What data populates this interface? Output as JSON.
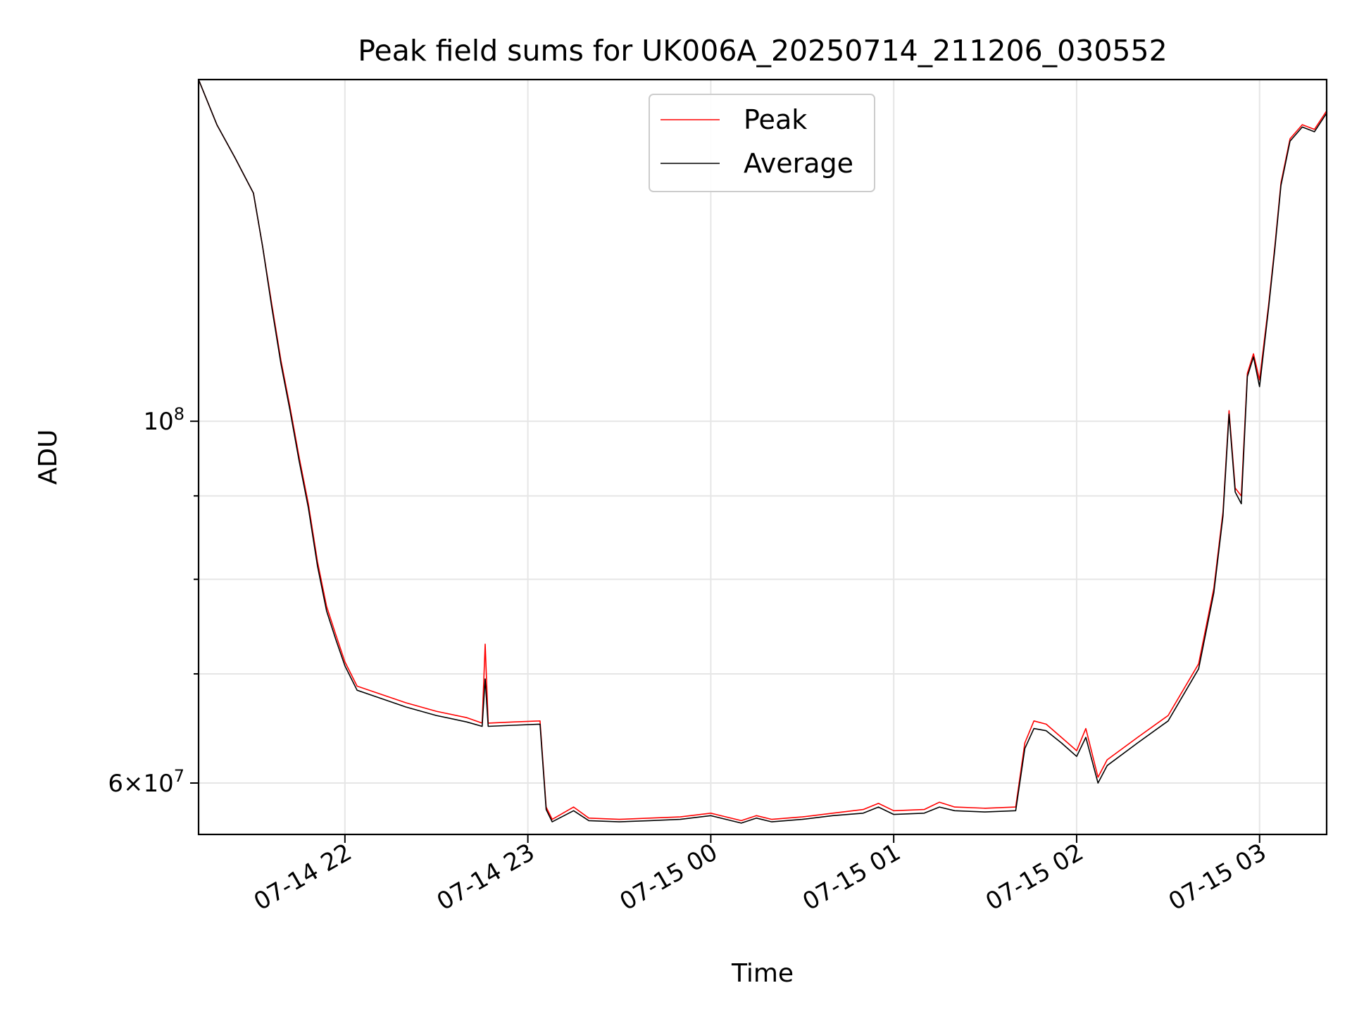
{
  "chart_data": {
    "type": "line",
    "title": "Peak field sums for UK006A_20250714_211206_030552",
    "xlabel": "Time",
    "ylabel": "ADU",
    "y_scale": "log",
    "grid": true,
    "legend_placement": "upper center",
    "xlim": [
      "2025-07-14 21:12",
      "2025-07-15 03:22"
    ],
    "ylim": [
      55800000,
      162000000
    ],
    "x_ticks": [
      {
        "t": "2025-07-14 22:00",
        "label": "07-14 22"
      },
      {
        "t": "2025-07-14 23:00",
        "label": "07-14 23"
      },
      {
        "t": "2025-07-15 00:00",
        "label": "07-15 00"
      },
      {
        "t": "2025-07-15 01:00",
        "label": "07-15 01"
      },
      {
        "t": "2025-07-15 02:00",
        "label": "07-15 02"
      },
      {
        "t": "2025-07-15 03:00",
        "label": "07-15 03"
      }
    ],
    "y_major_ticks": [
      {
        "value": 60000000,
        "base": "6",
        "exp": "7"
      },
      {
        "value": 100000000,
        "base": "",
        "exp": "8"
      }
    ],
    "y_minor_ticks": [
      70000000,
      80000000,
      90000000
    ],
    "series": [
      {
        "name": "Peak",
        "color": "#ff0000",
        "points": [
          [
            "2025-07-14 21:12",
            162000000
          ],
          [
            "2025-07-14 21:18",
            152000000
          ],
          [
            "2025-07-14 21:24",
            145000000
          ],
          [
            "2025-07-14 21:30",
            138000000
          ],
          [
            "2025-07-14 21:33",
            128000000
          ],
          [
            "2025-07-14 21:36",
            118000000
          ],
          [
            "2025-07-14 21:39",
            109000000
          ],
          [
            "2025-07-14 21:42",
            102000000
          ],
          [
            "2025-07-14 21:45",
            95000000
          ],
          [
            "2025-07-14 21:48",
            89000000
          ],
          [
            "2025-07-14 21:51",
            82000000
          ],
          [
            "2025-07-14 21:54",
            77000000
          ],
          [
            "2025-07-14 21:57",
            74000000
          ],
          [
            "2025-07-14 22:00",
            71200000
          ],
          [
            "2025-07-14 22:04",
            68800000
          ],
          [
            "2025-07-14 22:10",
            68200000
          ],
          [
            "2025-07-14 22:20",
            67200000
          ],
          [
            "2025-07-14 22:30",
            66400000
          ],
          [
            "2025-07-14 22:40",
            65800000
          ],
          [
            "2025-07-14 22:45",
            65300000
          ],
          [
            "2025-07-14 22:46",
            73000000
          ],
          [
            "2025-07-14 22:47",
            65300000
          ],
          [
            "2025-07-14 22:55",
            65400000
          ],
          [
            "2025-07-14 23:04",
            65500000
          ],
          [
            "2025-07-14 23:06",
            58000000
          ],
          [
            "2025-07-14 23:08",
            57000000
          ],
          [
            "2025-07-14 23:15",
            58000000
          ],
          [
            "2025-07-14 23:20",
            57100000
          ],
          [
            "2025-07-14 23:30",
            57000000
          ],
          [
            "2025-07-14 23:40",
            57100000
          ],
          [
            "2025-07-14 23:50",
            57200000
          ],
          [
            "2025-07-15 00:00",
            57500000
          ],
          [
            "2025-07-15 00:10",
            56900000
          ],
          [
            "2025-07-15 00:15",
            57300000
          ],
          [
            "2025-07-15 00:20",
            57000000
          ],
          [
            "2025-07-15 00:30",
            57200000
          ],
          [
            "2025-07-15 00:40",
            57500000
          ],
          [
            "2025-07-15 00:50",
            57800000
          ],
          [
            "2025-07-15 00:55",
            58300000
          ],
          [
            "2025-07-15 01:00",
            57700000
          ],
          [
            "2025-07-15 01:10",
            57800000
          ],
          [
            "2025-07-15 01:15",
            58400000
          ],
          [
            "2025-07-15 01:20",
            58000000
          ],
          [
            "2025-07-15 01:30",
            57900000
          ],
          [
            "2025-07-15 01:40",
            58000000
          ],
          [
            "2025-07-15 01:43",
            63500000
          ],
          [
            "2025-07-15 01:46",
            65500000
          ],
          [
            "2025-07-15 01:50",
            65200000
          ],
          [
            "2025-07-15 01:55",
            64000000
          ],
          [
            "2025-07-15 02:00",
            62800000
          ],
          [
            "2025-07-15 02:03",
            64800000
          ],
          [
            "2025-07-15 02:07",
            60500000
          ],
          [
            "2025-07-15 02:10",
            62000000
          ],
          [
            "2025-07-15 02:20",
            64000000
          ],
          [
            "2025-07-15 02:30",
            66000000
          ],
          [
            "2025-07-15 02:40",
            71000000
          ],
          [
            "2025-07-15 02:45",
            79000000
          ],
          [
            "2025-07-15 02:48",
            88000000
          ],
          [
            "2025-07-15 02:50",
            101500000
          ],
          [
            "2025-07-15 02:52",
            91000000
          ],
          [
            "2025-07-15 02:54",
            90000000
          ],
          [
            "2025-07-15 02:56",
            107000000
          ],
          [
            "2025-07-15 02:58",
            110000000
          ],
          [
            "2025-07-15 03:00",
            106000000
          ],
          [
            "2025-07-15 03:03",
            118000000
          ],
          [
            "2025-07-15 03:05",
            128000000
          ],
          [
            "2025-07-15 03:07",
            140000000
          ],
          [
            "2025-07-15 03:10",
            149000000
          ],
          [
            "2025-07-15 03:14",
            152000000
          ],
          [
            "2025-07-15 03:18",
            151000000
          ],
          [
            "2025-07-15 03:22",
            155000000
          ]
        ]
      },
      {
        "name": "Average",
        "color": "#000000",
        "points": [
          [
            "2025-07-14 21:12",
            162000000
          ],
          [
            "2025-07-14 21:18",
            152000000
          ],
          [
            "2025-07-14 21:24",
            145000000
          ],
          [
            "2025-07-14 21:30",
            138000000
          ],
          [
            "2025-07-14 21:33",
            128000000
          ],
          [
            "2025-07-14 21:36",
            117500000
          ],
          [
            "2025-07-14 21:39",
            108500000
          ],
          [
            "2025-07-14 21:42",
            101500000
          ],
          [
            "2025-07-14 21:45",
            94500000
          ],
          [
            "2025-07-14 21:48",
            88500000
          ],
          [
            "2025-07-14 21:51",
            81500000
          ],
          [
            "2025-07-14 21:54",
            76500000
          ],
          [
            "2025-07-14 21:57",
            73500000
          ],
          [
            "2025-07-14 22:00",
            70800000
          ],
          [
            "2025-07-14 22:04",
            68400000
          ],
          [
            "2025-07-14 22:10",
            67800000
          ],
          [
            "2025-07-14 22:20",
            66800000
          ],
          [
            "2025-07-14 22:30",
            66000000
          ],
          [
            "2025-07-14 22:40",
            65400000
          ],
          [
            "2025-07-14 22:45",
            65000000
          ],
          [
            "2025-07-14 22:46",
            69500000
          ],
          [
            "2025-07-14 22:47",
            65000000
          ],
          [
            "2025-07-14 22:55",
            65100000
          ],
          [
            "2025-07-14 23:04",
            65200000
          ],
          [
            "2025-07-14 23:06",
            57800000
          ],
          [
            "2025-07-14 23:08",
            56800000
          ],
          [
            "2025-07-14 23:15",
            57700000
          ],
          [
            "2025-07-14 23:20",
            56900000
          ],
          [
            "2025-07-14 23:30",
            56800000
          ],
          [
            "2025-07-14 23:40",
            56900000
          ],
          [
            "2025-07-14 23:50",
            57000000
          ],
          [
            "2025-07-15 00:00",
            57300000
          ],
          [
            "2025-07-15 00:10",
            56700000
          ],
          [
            "2025-07-15 00:15",
            57100000
          ],
          [
            "2025-07-15 00:20",
            56800000
          ],
          [
            "2025-07-15 00:30",
            57000000
          ],
          [
            "2025-07-15 00:40",
            57300000
          ],
          [
            "2025-07-15 00:50",
            57500000
          ],
          [
            "2025-07-15 00:55",
            58000000
          ],
          [
            "2025-07-15 01:00",
            57400000
          ],
          [
            "2025-07-15 01:10",
            57500000
          ],
          [
            "2025-07-15 01:15",
            58000000
          ],
          [
            "2025-07-15 01:20",
            57700000
          ],
          [
            "2025-07-15 01:30",
            57600000
          ],
          [
            "2025-07-15 01:40",
            57700000
          ],
          [
            "2025-07-15 01:43",
            63000000
          ],
          [
            "2025-07-15 01:46",
            64800000
          ],
          [
            "2025-07-15 01:50",
            64600000
          ],
          [
            "2025-07-15 01:55",
            63500000
          ],
          [
            "2025-07-15 02:00",
            62300000
          ],
          [
            "2025-07-15 02:03",
            64000000
          ],
          [
            "2025-07-15 02:07",
            60000000
          ],
          [
            "2025-07-15 02:10",
            61500000
          ],
          [
            "2025-07-15 02:20",
            63500000
          ],
          [
            "2025-07-15 02:30",
            65500000
          ],
          [
            "2025-07-15 02:40",
            70500000
          ],
          [
            "2025-07-15 02:45",
            78500000
          ],
          [
            "2025-07-15 02:48",
            87500000
          ],
          [
            "2025-07-15 02:50",
            101000000
          ],
          [
            "2025-07-15 02:52",
            90500000
          ],
          [
            "2025-07-15 02:54",
            89000000
          ],
          [
            "2025-07-15 02:56",
            106500000
          ],
          [
            "2025-07-15 02:58",
            109500000
          ],
          [
            "2025-07-15 03:00",
            105000000
          ],
          [
            "2025-07-15 03:03",
            117500000
          ],
          [
            "2025-07-15 03:05",
            127500000
          ],
          [
            "2025-07-15 03:07",
            139500000
          ],
          [
            "2025-07-15 03:10",
            148500000
          ],
          [
            "2025-07-15 03:14",
            151500000
          ],
          [
            "2025-07-15 03:18",
            150500000
          ],
          [
            "2025-07-15 03:22",
            154500000
          ]
        ]
      }
    ]
  }
}
